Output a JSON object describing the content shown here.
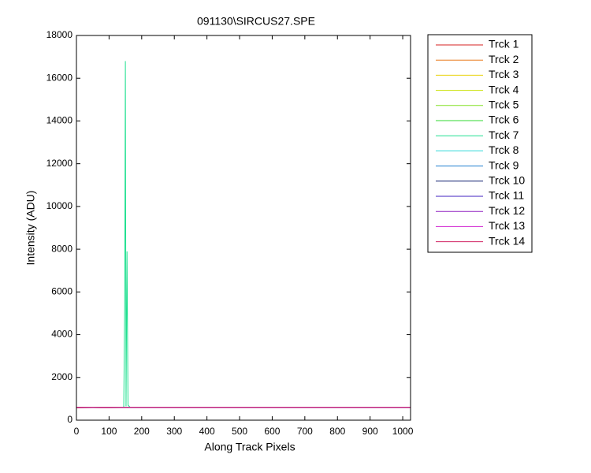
{
  "chart_data": {
    "type": "line",
    "title": "091130\\SIRCUS27.SPE",
    "xlabel": "Along Track Pixels",
    "ylabel": "Intensity (ADU)",
    "x": [
      0,
      50,
      100,
      140,
      145,
      148,
      150,
      152,
      155,
      158,
      165,
      220,
      500,
      1024
    ],
    "series": [
      {
        "name": "Trck 1",
        "color": "#d42020",
        "values": [
          580,
          590,
          585,
          590,
          590,
          590,
          595,
          600,
          600,
          600,
          600,
          600,
          600,
          600
        ]
      },
      {
        "name": "Trck 2",
        "color": "#e87818",
        "values": [
          600,
          600,
          600,
          600,
          600,
          600,
          600,
          600,
          600,
          600,
          600,
          600,
          600,
          600
        ]
      },
      {
        "name": "Trck 3",
        "color": "#e8d000",
        "values": [
          600,
          600,
          600,
          600,
          600,
          600,
          600,
          600,
          600,
          600,
          600,
          600,
          600,
          600
        ]
      },
      {
        "name": "Trck 4",
        "color": "#c8e000",
        "values": [
          600,
          600,
          600,
          600,
          600,
          600,
          600,
          600,
          600,
          600,
          600,
          600,
          600,
          600
        ]
      },
      {
        "name": "Trck 5",
        "color": "#80e020",
        "values": [
          600,
          600,
          600,
          600,
          600,
          600,
          600,
          600,
          600,
          600,
          600,
          600,
          600,
          600
        ]
      },
      {
        "name": "Trck 6",
        "color": "#30d830",
        "values": [
          600,
          600,
          600,
          600,
          600,
          600,
          600,
          600,
          600,
          600,
          600,
          600,
          600,
          600
        ]
      },
      {
        "name": "Trck 7",
        "color": "#20e090",
        "values": [
          600,
          600,
          600,
          600,
          620,
          5400,
          16800,
          650,
          7900,
          700,
          600,
          600,
          600,
          600
        ]
      },
      {
        "name": "Trck 8",
        "color": "#30d8d8",
        "values": [
          600,
          600,
          600,
          600,
          600,
          600,
          600,
          600,
          600,
          600,
          600,
          600,
          600,
          600
        ]
      },
      {
        "name": "Trck 9",
        "color": "#2080d0",
        "values": [
          600,
          600,
          600,
          600,
          600,
          600,
          600,
          600,
          600,
          600,
          600,
          600,
          600,
          600
        ]
      },
      {
        "name": "Trck 10",
        "color": "#102070",
        "values": [
          600,
          600,
          600,
          600,
          600,
          600,
          600,
          600,
          600,
          600,
          600,
          600,
          600,
          600
        ]
      },
      {
        "name": "Trck 11",
        "color": "#4020c0",
        "values": [
          600,
          600,
          600,
          600,
          600,
          600,
          600,
          600,
          600,
          600,
          600,
          600,
          600,
          600
        ]
      },
      {
        "name": "Trck 12",
        "color": "#9020c0",
        "values": [
          600,
          600,
          600,
          600,
          600,
          600,
          600,
          600,
          600,
          600,
          600,
          600,
          600,
          600
        ]
      },
      {
        "name": "Trck 13",
        "color": "#d020d0",
        "values": [
          600,
          600,
          600,
          600,
          600,
          600,
          600,
          600,
          600,
          600,
          600,
          600,
          600,
          600
        ]
      },
      {
        "name": "Trck 14",
        "color": "#d02060",
        "values": [
          600,
          600,
          600,
          600,
          600,
          600,
          600,
          600,
          600,
          600,
          600,
          600,
          600,
          600
        ]
      }
    ],
    "xlim": [
      0,
      1024
    ],
    "xticks": [
      0,
      100,
      200,
      300,
      400,
      500,
      600,
      700,
      800,
      900,
      1000
    ],
    "ylim": [
      0,
      18000
    ],
    "yticks": [
      0,
      2000,
      4000,
      6000,
      8000,
      10000,
      12000,
      14000,
      16000,
      18000
    ],
    "legend": "outside-right"
  }
}
